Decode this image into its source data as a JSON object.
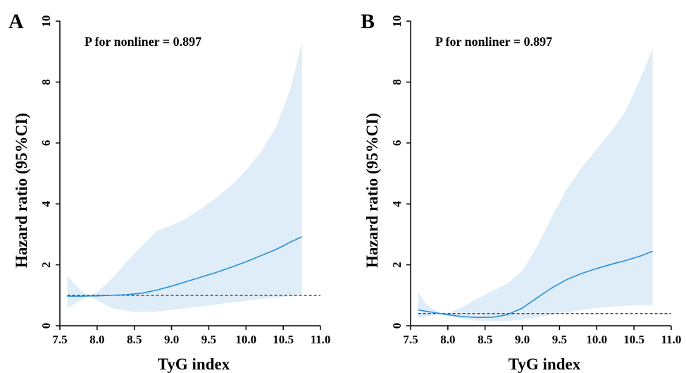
{
  "chart_data": [
    {
      "type": "line",
      "panel_label": "A",
      "annotation": "P for nonliner = 0.897",
      "xlabel": "TyG index",
      "ylabel": "Hazard ratio (95%CI)",
      "xlim": [
        7.5,
        11.0
      ],
      "ylim": [
        0,
        10
      ],
      "xticks": [
        "7.5",
        "8.0",
        "8.5",
        "9.0",
        "9.5",
        "10.0",
        "10.5",
        "11.0"
      ],
      "yticks": [
        "0",
        "2",
        "4",
        "6",
        "8",
        "10"
      ],
      "reference_line": 1.0,
      "grid": false,
      "colors": {
        "line": "#2b8fd6",
        "band": "#deedf7",
        "reference": "#333333"
      },
      "x": [
        7.6,
        7.7,
        7.8,
        7.9,
        8.0,
        8.2,
        8.4,
        8.6,
        8.8,
        9.0,
        9.2,
        9.4,
        9.6,
        9.8,
        10.0,
        10.2,
        10.4,
        10.6,
        10.75
      ],
      "hr": [
        0.97,
        0.97,
        0.97,
        0.98,
        0.98,
        1.0,
        1.02,
        1.07,
        1.17,
        1.3,
        1.45,
        1.6,
        1.75,
        1.92,
        2.1,
        2.3,
        2.5,
        2.75,
        2.92
      ],
      "lower": [
        0.6,
        0.72,
        0.86,
        0.96,
        0.84,
        0.58,
        0.48,
        0.45,
        0.47,
        0.52,
        0.58,
        0.64,
        0.7,
        0.76,
        0.82,
        0.88,
        0.93,
        0.97,
        1.0
      ],
      "upper": [
        1.65,
        1.36,
        1.12,
        1.0,
        1.1,
        1.55,
        2.1,
        2.62,
        3.1,
        3.3,
        3.52,
        3.85,
        4.2,
        4.6,
        5.1,
        5.7,
        6.5,
        7.8,
        9.3
      ]
    },
    {
      "type": "line",
      "panel_label": "B",
      "annotation": "P for nonliner = 0.897",
      "xlabel": "TyG index",
      "ylabel": "Hazard ratio (95%CI)",
      "xlim": [
        7.5,
        11.0
      ],
      "ylim": [
        0,
        10
      ],
      "xticks": [
        "7.5",
        "8.0",
        "8.5",
        "9.0",
        "9.5",
        "10.0",
        "10.5",
        "11.0"
      ],
      "yticks": [
        "0",
        "2",
        "4",
        "6",
        "8",
        "10"
      ],
      "reference_line": 0.4,
      "grid": false,
      "colors": {
        "line": "#2b8fd6",
        "band": "#deedf7",
        "reference": "#333333"
      },
      "x": [
        7.6,
        7.7,
        7.8,
        7.9,
        8.0,
        8.2,
        8.4,
        8.6,
        8.8,
        9.0,
        9.2,
        9.4,
        9.6,
        9.8,
        10.0,
        10.2,
        10.4,
        10.6,
        10.75
      ],
      "hr": [
        0.52,
        0.48,
        0.44,
        0.4,
        0.36,
        0.3,
        0.27,
        0.28,
        0.36,
        0.58,
        0.92,
        1.25,
        1.52,
        1.72,
        1.88,
        2.02,
        2.15,
        2.3,
        2.45
      ],
      "lower": [
        0.25,
        0.3,
        0.35,
        0.38,
        0.32,
        0.22,
        0.17,
        0.15,
        0.16,
        0.2,
        0.28,
        0.36,
        0.44,
        0.52,
        0.58,
        0.63,
        0.66,
        0.68,
        0.68
      ],
      "upper": [
        1.1,
        0.74,
        0.55,
        0.42,
        0.42,
        0.62,
        0.9,
        1.15,
        1.38,
        1.8,
        2.6,
        3.6,
        4.5,
        5.2,
        5.8,
        6.4,
        7.1,
        8.2,
        9.1
      ]
    }
  ]
}
